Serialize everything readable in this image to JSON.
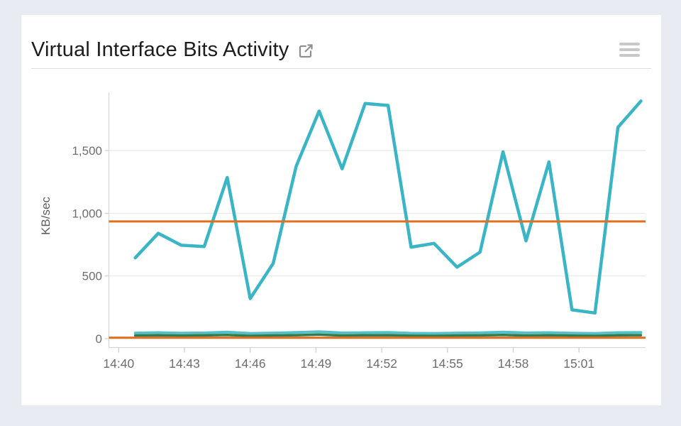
{
  "header": {
    "title": "Virtual Interface Bits Activity",
    "icons": [
      {
        "name": "external-link-icon"
      },
      {
        "name": "hamburger-menu-icon"
      }
    ]
  },
  "colors": {
    "page_background": "#e8ebf2",
    "card_background": "#ffffff",
    "series_teal": "#3ab5c6",
    "series_teal_low": "#56c0c9",
    "series_green": "#337a4d",
    "threshold_orange": "#e0701f",
    "grid": "#ebebeb",
    "axis": "#d9d9d9",
    "tick_text": "#6e6e6e"
  },
  "chart_data": {
    "type": "line",
    "title": "Virtual Interface Bits Activity",
    "xlabel": "",
    "ylabel": "KB/sec",
    "ylim": [
      0,
      1965
    ],
    "grid": true,
    "legend_position": "none",
    "y_ticks": [
      0,
      500,
      1000,
      1500
    ],
    "y_tick_labels": [
      "0",
      "500",
      "1,000",
      "1,500"
    ],
    "x_tick_labels": [
      "14:40",
      "14:43",
      "14:46",
      "14:49",
      "14:52",
      "14:55",
      "14:58",
      "15:01"
    ],
    "x": [
      "14:41",
      "14:42",
      "14:43",
      "14:44",
      "14:45",
      "14:46",
      "14:47",
      "14:48",
      "14:49",
      "14:50",
      "14:51",
      "14:52",
      "14:53",
      "14:54",
      "14:55",
      "14:56",
      "14:57",
      "14:58",
      "14:59",
      "15:00",
      "15:01",
      "15:02",
      "15:03"
    ],
    "series": [
      {
        "name": "series-teal-main",
        "color": "#3ab5c6",
        "width": 4.5,
        "values": [
          645,
          840,
          745,
          735,
          1285,
          320,
          600,
          1375,
          1815,
          1355,
          1875,
          1860,
          730,
          760,
          570,
          690,
          1490,
          780,
          1410,
          230,
          205,
          1685,
          1895
        ]
      },
      {
        "name": "series-teal-low",
        "color": "#56c0c9",
        "width": 4,
        "values": [
          45,
          48,
          44,
          46,
          52,
          42,
          45,
          50,
          55,
          46,
          48,
          50,
          43,
          42,
          45,
          47,
          52,
          46,
          48,
          44,
          42,
          48,
          50
        ]
      },
      {
        "name": "series-green-low",
        "color": "#337a4d",
        "width": 3.5,
        "values": [
          25,
          27,
          24,
          26,
          30,
          22,
          25,
          28,
          32,
          25,
          27,
          28,
          23,
          22,
          25,
          26,
          30,
          25,
          27,
          24,
          22,
          27,
          28
        ]
      }
    ],
    "threshold_lines": [
      {
        "name": "threshold-high",
        "color": "#e0701f",
        "value": 935,
        "width": 3
      },
      {
        "name": "threshold-low",
        "color": "#e0701f",
        "value": 8,
        "width": 3
      }
    ]
  }
}
